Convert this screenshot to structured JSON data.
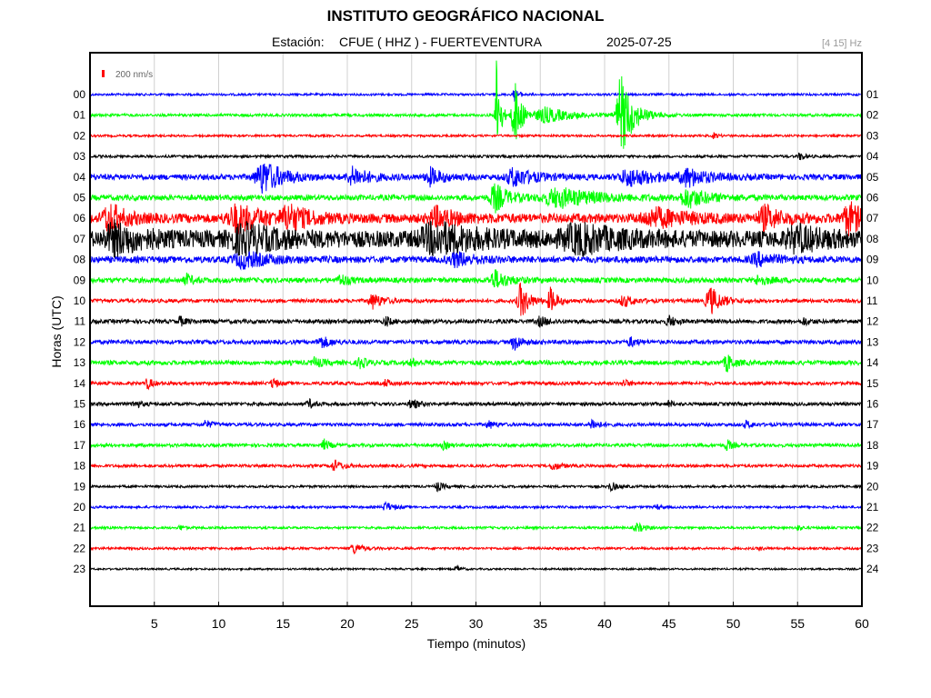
{
  "header": {
    "title": "INSTITUTO GEOGRÁFICO NACIONAL",
    "station_label": "Estación:",
    "station": "CFUE ( HHZ ) - FUERTEVENTURA",
    "date": "2025-07-25",
    "filter": "[4 15] Hz"
  },
  "chart_data": {
    "type": "line",
    "title": "INSTITUTO GEOGRÁFICO NACIONAL",
    "xlabel": "Tiempo (minutos)",
    "ylabel": "Horas (UTC)",
    "xlim": [
      0,
      60
    ],
    "xticks": [
      5,
      10,
      15,
      20,
      25,
      30,
      35,
      40,
      45,
      50,
      55,
      60
    ],
    "scale_label": "200 nm/s",
    "scale_color": "#ff0000",
    "hours_left": [
      "00",
      "01",
      "02",
      "03",
      "04",
      "05",
      "06",
      "07",
      "08",
      "09",
      "10",
      "11",
      "12",
      "13",
      "14",
      "15",
      "16",
      "17",
      "18",
      "19",
      "20",
      "21",
      "22",
      "23"
    ],
    "hours_right": [
      "01",
      "02",
      "03",
      "04",
      "05",
      "06",
      "07",
      "08",
      "09",
      "10",
      "11",
      "12",
      "13",
      "14",
      "15",
      "16",
      "17",
      "18",
      "19",
      "20",
      "21",
      "22",
      "23",
      "24"
    ],
    "colors": [
      "#0000ff",
      "#00ff00",
      "#ff0000",
      "#000000"
    ],
    "traces": [
      {
        "hour": "00",
        "base": 1.2,
        "events": [
          {
            "x": 33.0,
            "amp": 6,
            "w": 0.4
          }
        ]
      },
      {
        "hour": "01",
        "base": 1.5,
        "events": [
          {
            "x": 31.6,
            "amp": 70,
            "w": 0.25
          },
          {
            "x": 33.0,
            "amp": 40,
            "w": 0.5
          },
          {
            "x": 35.5,
            "amp": 8,
            "w": 2.0
          },
          {
            "x": 41.3,
            "amp": 45,
            "w": 0.9
          }
        ]
      },
      {
        "hour": "02",
        "base": 1.2,
        "events": [
          {
            "x": 48.5,
            "amp": 3,
            "w": 0.3
          }
        ]
      },
      {
        "hour": "03",
        "base": 1.4,
        "events": [
          {
            "x": 55.2,
            "amp": 4,
            "w": 0.4
          }
        ]
      },
      {
        "hour": "04",
        "base": 3.0,
        "events": [
          {
            "x": 13.5,
            "amp": 18,
            "w": 1.5
          },
          {
            "x": 20.5,
            "amp": 10,
            "w": 1.2
          },
          {
            "x": 26.5,
            "amp": 9,
            "w": 1.0
          },
          {
            "x": 33.0,
            "amp": 10,
            "w": 1.5
          },
          {
            "x": 42.0,
            "amp": 9,
            "w": 2.0
          },
          {
            "x": 46.5,
            "amp": 9,
            "w": 1.5
          }
        ]
      },
      {
        "hour": "05",
        "base": 3.0,
        "events": [
          {
            "x": 31.5,
            "amp": 15,
            "w": 1.0
          },
          {
            "x": 36.5,
            "amp": 10,
            "w": 3.0
          },
          {
            "x": 46.5,
            "amp": 10,
            "w": 1.5
          }
        ]
      },
      {
        "hour": "06",
        "base": 5.0,
        "events": [
          {
            "x": 1.5,
            "amp": 16,
            "w": 1.2
          },
          {
            "x": 11.5,
            "amp": 14,
            "w": 2.0
          },
          {
            "x": 15.5,
            "amp": 12,
            "w": 1.5
          },
          {
            "x": 27.0,
            "amp": 10,
            "w": 1.5
          },
          {
            "x": 44.0,
            "amp": 9,
            "w": 2.5
          },
          {
            "x": 52.5,
            "amp": 12,
            "w": 1.2
          },
          {
            "x": 59.0,
            "amp": 16,
            "w": 1.2
          }
        ]
      },
      {
        "hour": "07",
        "base": 9.0,
        "events": [
          {
            "x": 2.0,
            "amp": 14,
            "w": 2.0
          },
          {
            "x": 12.0,
            "amp": 12,
            "w": 2.5
          },
          {
            "x": 27.0,
            "amp": 14,
            "w": 3.0
          },
          {
            "x": 38.0,
            "amp": 12,
            "w": 3.0
          },
          {
            "x": 55.0,
            "amp": 10,
            "w": 2.0
          }
        ]
      },
      {
        "hour": "08",
        "base": 3.5,
        "events": [
          {
            "x": 12.0,
            "amp": 8,
            "w": 2.0
          },
          {
            "x": 28.5,
            "amp": 7,
            "w": 1.5
          },
          {
            "x": 52.0,
            "amp": 6,
            "w": 1.5
          }
        ]
      },
      {
        "hour": "09",
        "base": 2.8,
        "events": [
          {
            "x": 7.5,
            "amp": 6,
            "w": 0.5
          },
          {
            "x": 19.5,
            "amp": 6,
            "w": 0.6
          },
          {
            "x": 31.5,
            "amp": 10,
            "w": 1.0
          },
          {
            "x": 52.0,
            "amp": 5,
            "w": 0.8
          }
        ]
      },
      {
        "hour": "10",
        "base": 2.0,
        "events": [
          {
            "x": 22.0,
            "amp": 8,
            "w": 0.8
          },
          {
            "x": 33.5,
            "amp": 20,
            "w": 0.6
          },
          {
            "x": 35.8,
            "amp": 14,
            "w": 0.5
          },
          {
            "x": 41.5,
            "amp": 6,
            "w": 0.8
          },
          {
            "x": 48.2,
            "amp": 16,
            "w": 0.8
          }
        ]
      },
      {
        "hour": "11",
        "base": 2.2,
        "events": [
          {
            "x": 7.0,
            "amp": 5,
            "w": 0.4
          },
          {
            "x": 23.0,
            "amp": 5,
            "w": 0.4
          },
          {
            "x": 35.0,
            "amp": 5,
            "w": 0.6
          },
          {
            "x": 45.0,
            "amp": 6,
            "w": 0.5
          },
          {
            "x": 55.5,
            "amp": 4,
            "w": 0.4
          }
        ]
      },
      {
        "hour": "12",
        "base": 2.2,
        "events": [
          {
            "x": 18.0,
            "amp": 6,
            "w": 0.8
          },
          {
            "x": 33.0,
            "amp": 8,
            "w": 0.6
          },
          {
            "x": 42.0,
            "amp": 5,
            "w": 0.5
          }
        ]
      },
      {
        "hour": "13",
        "base": 2.5,
        "events": [
          {
            "x": 17.5,
            "amp": 5,
            "w": 0.6
          },
          {
            "x": 21.0,
            "amp": 6,
            "w": 0.5
          },
          {
            "x": 25.0,
            "amp": 4,
            "w": 0.4
          },
          {
            "x": 49.5,
            "amp": 10,
            "w": 0.5
          }
        ]
      },
      {
        "hour": "14",
        "base": 1.8,
        "events": [
          {
            "x": 4.5,
            "amp": 6,
            "w": 0.4
          },
          {
            "x": 14.2,
            "amp": 7,
            "w": 0.3
          },
          {
            "x": 23.0,
            "amp": 4,
            "w": 0.4
          },
          {
            "x": 41.5,
            "amp": 4,
            "w": 0.4
          }
        ]
      },
      {
        "hour": "15",
        "base": 1.8,
        "events": [
          {
            "x": 3.5,
            "amp": 4,
            "w": 0.5
          },
          {
            "x": 17.0,
            "amp": 5,
            "w": 0.4
          },
          {
            "x": 25.0,
            "amp": 6,
            "w": 0.5
          },
          {
            "x": 45.0,
            "amp": 4,
            "w": 0.3
          }
        ]
      },
      {
        "hour": "16",
        "base": 1.8,
        "events": [
          {
            "x": 9.0,
            "amp": 4,
            "w": 0.5
          },
          {
            "x": 31.0,
            "amp": 4,
            "w": 0.5
          },
          {
            "x": 39.0,
            "amp": 6,
            "w": 0.5
          },
          {
            "x": 51.0,
            "amp": 4,
            "w": 0.4
          }
        ]
      },
      {
        "hour": "17",
        "base": 1.8,
        "events": [
          {
            "x": 18.2,
            "amp": 6,
            "w": 0.4
          },
          {
            "x": 27.5,
            "amp": 4,
            "w": 0.4
          },
          {
            "x": 49.5,
            "amp": 6,
            "w": 0.4
          }
        ]
      },
      {
        "hour": "18",
        "base": 1.6,
        "events": [
          {
            "x": 19.0,
            "amp": 6,
            "w": 0.6
          },
          {
            "x": 36.0,
            "amp": 5,
            "w": 0.5
          }
        ]
      },
      {
        "hour": "19",
        "base": 1.3,
        "events": [
          {
            "x": 27.0,
            "amp": 5,
            "w": 0.5
          },
          {
            "x": 40.5,
            "amp": 5,
            "w": 0.5
          }
        ]
      },
      {
        "hour": "20",
        "base": 1.3,
        "events": [
          {
            "x": 23.0,
            "amp": 5,
            "w": 0.6
          },
          {
            "x": 44.0,
            "amp": 3,
            "w": 0.3
          }
        ]
      },
      {
        "hour": "21",
        "base": 1.3,
        "events": [
          {
            "x": 7.0,
            "amp": 3,
            "w": 0.3
          },
          {
            "x": 42.5,
            "amp": 5,
            "w": 0.6
          },
          {
            "x": 55.0,
            "amp": 3,
            "w": 0.3
          }
        ]
      },
      {
        "hour": "22",
        "base": 1.3,
        "events": [
          {
            "x": 20.5,
            "amp": 6,
            "w": 0.6
          },
          {
            "x": 52.0,
            "amp": 2,
            "w": 0.3
          }
        ]
      },
      {
        "hour": "23",
        "base": 1.0,
        "events": [
          {
            "x": 28.5,
            "amp": 4,
            "w": 0.3
          }
        ]
      }
    ]
  }
}
